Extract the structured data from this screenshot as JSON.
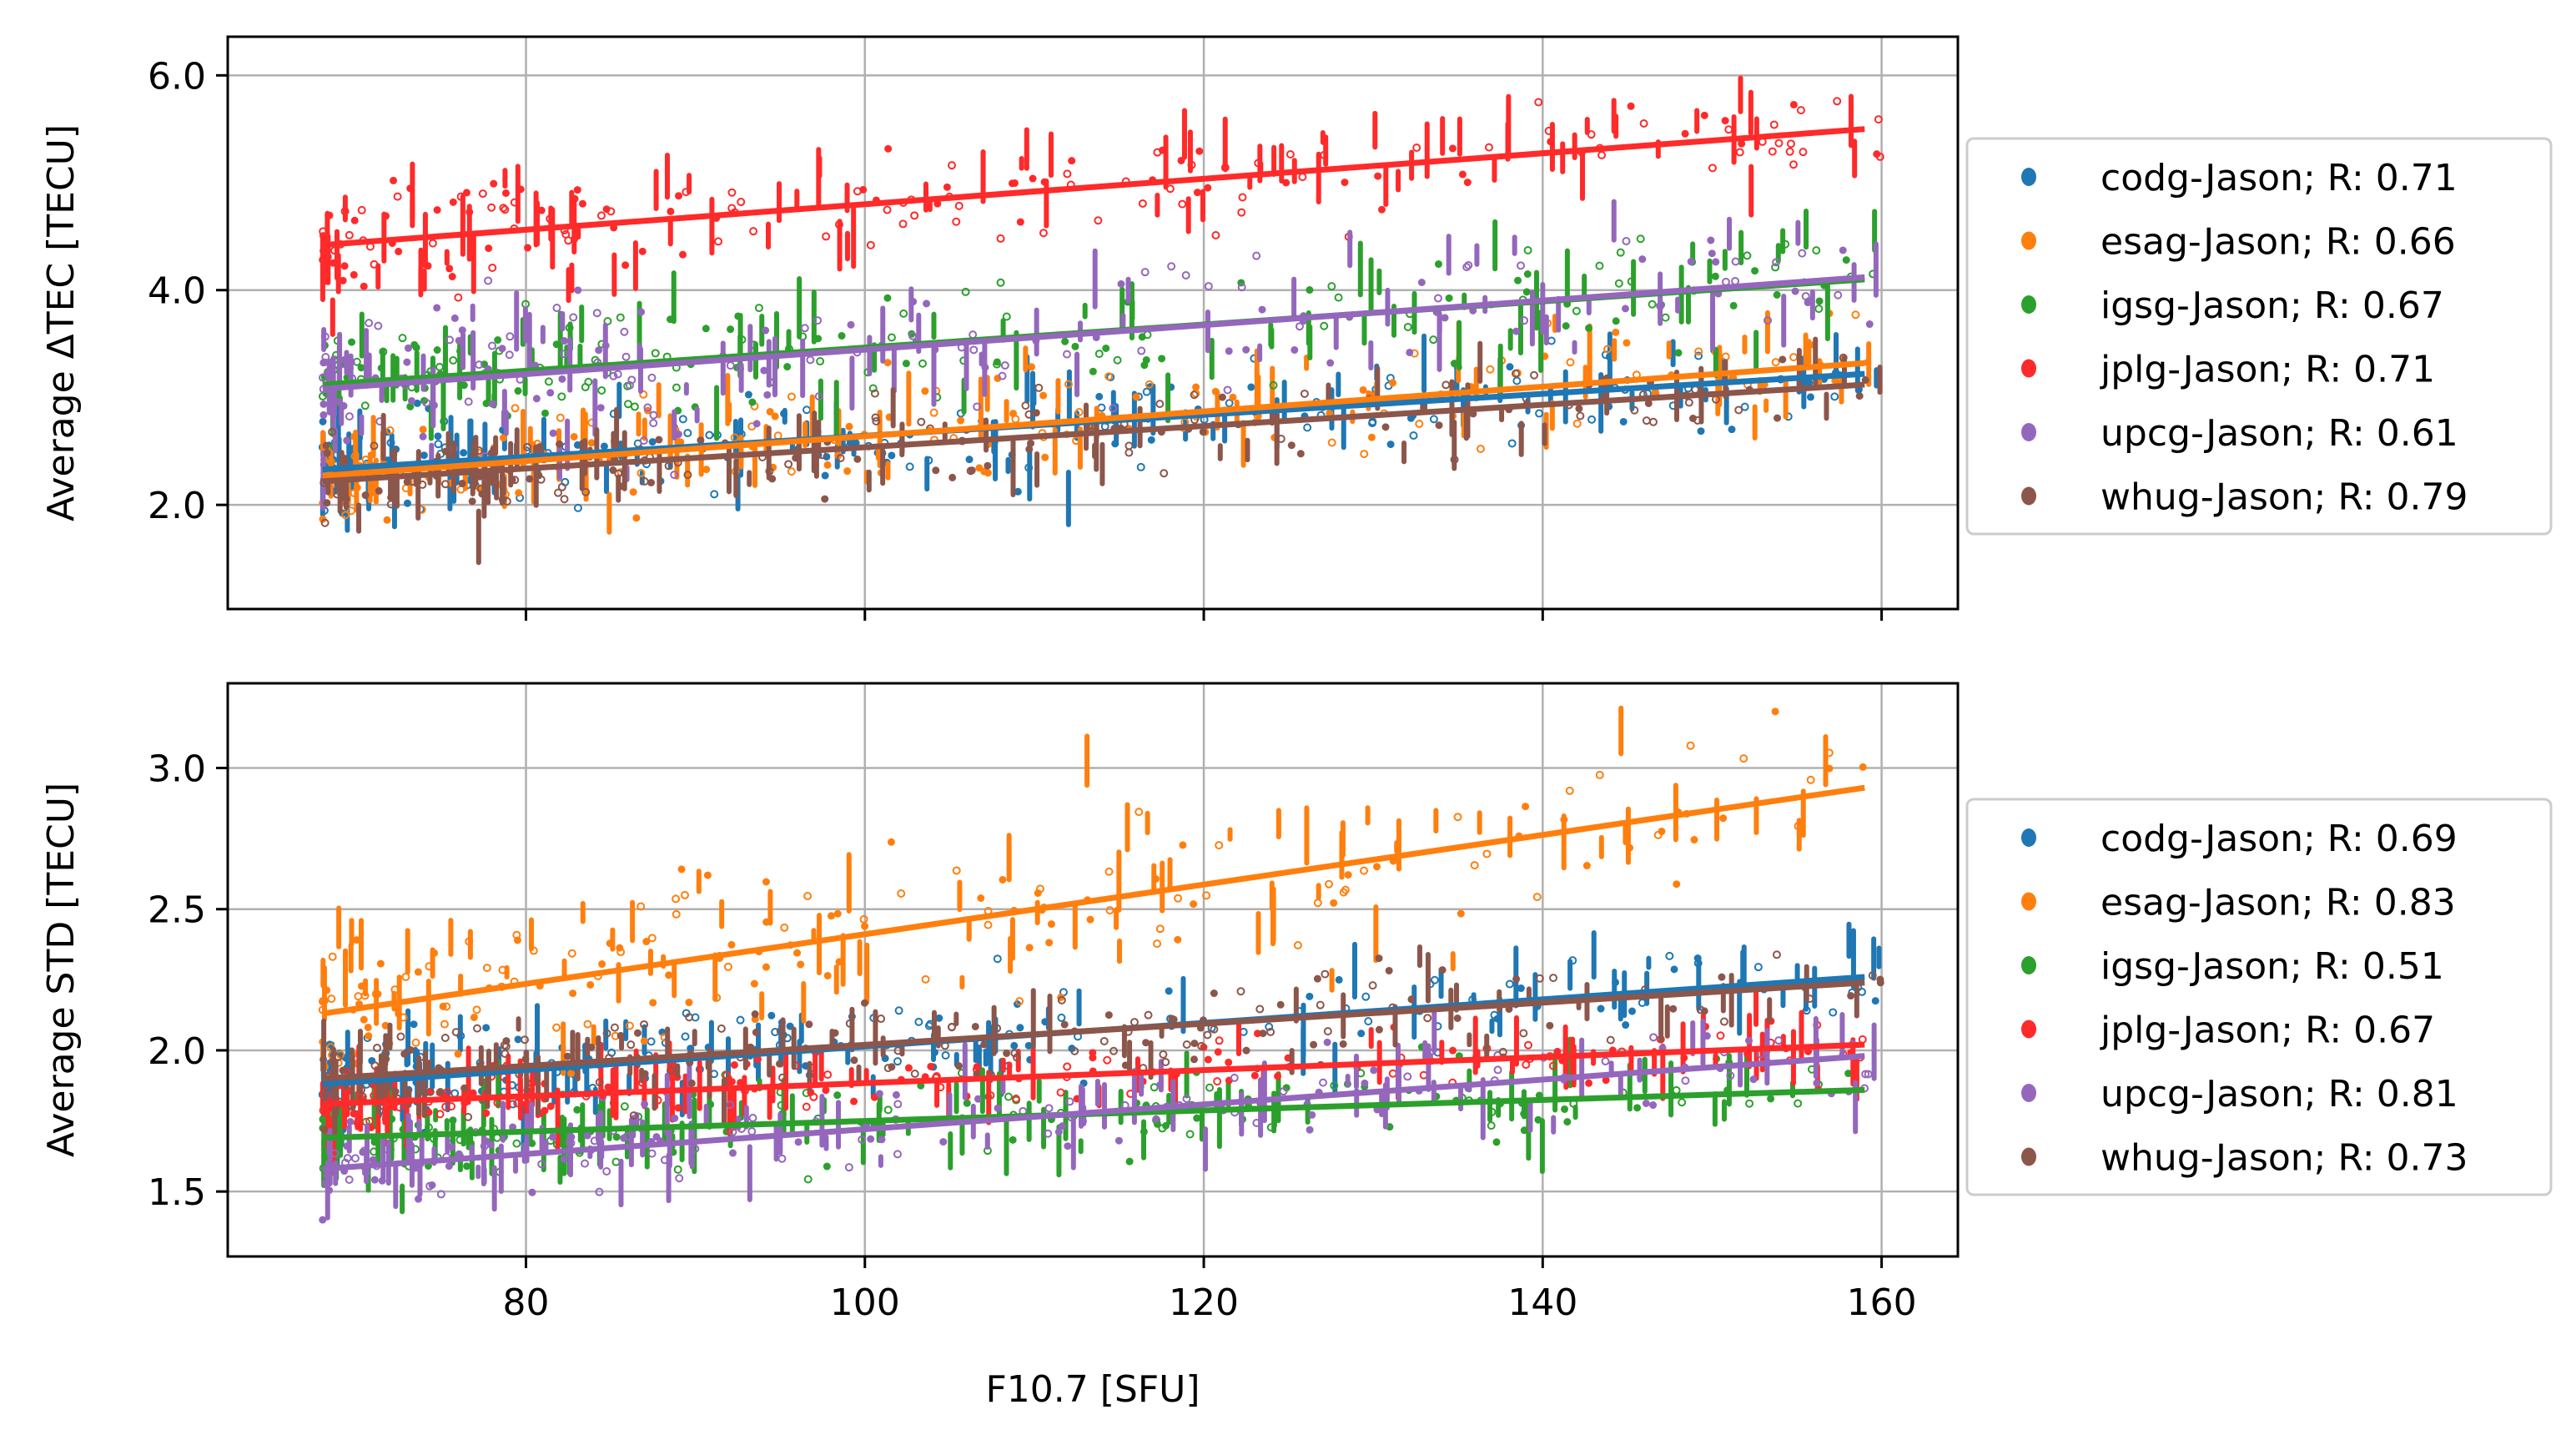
{
  "figure": {
    "xlabel": "F10.7 [SFU]"
  },
  "chart_data": [
    {
      "type": "scatter",
      "title": "",
      "xlabel": "F10.7 [SFU]",
      "ylabel": "Average ΔTEC [TECU]",
      "xlim": [
        62.4,
        164.5
      ],
      "ylim": [
        1.03,
        6.36
      ],
      "xticks": [
        80,
        100,
        120,
        140,
        160
      ],
      "xtick_labels": [
        "",
        "",
        "",
        "",
        ""
      ],
      "yticks": [
        2.0,
        4.0,
        6.0
      ],
      "ytick_labels": [
        "2.0",
        "4.0",
        "6.0"
      ],
      "grid": true,
      "legend_position": "outside right",
      "data_x_range": [
        68,
        160
      ],
      "series": [
        {
          "name": "codg-Jason; R: 0.71",
          "label": "codg-Jason",
          "R": 0.71,
          "color": "#1f77b4",
          "fit": {
            "x": [
              68,
              159
            ],
            "y": [
              2.33,
              3.22
            ]
          },
          "cloud": {
            "spread": 0.35,
            "low": 1.5,
            "high": 3.6
          }
        },
        {
          "name": "esag-Jason; R: 0.66",
          "label": "esag-Jason",
          "R": 0.66,
          "color": "#ff7f0e",
          "fit": {
            "x": [
              68,
              159
            ],
            "y": [
              2.27,
              3.32
            ]
          },
          "cloud": {
            "spread": 0.4,
            "low": 1.3,
            "high": 3.8
          }
        },
        {
          "name": "igsg-Jason; R: 0.67",
          "label": "igsg-Jason",
          "R": 0.67,
          "color": "#2ca02c",
          "fit": {
            "x": [
              68,
              159
            ],
            "y": [
              3.12,
              4.1
            ]
          },
          "cloud": {
            "spread": 0.45,
            "low": 2.2,
            "high": 4.7
          }
        },
        {
          "name": "jplg-Jason; R: 0.71",
          "label": "jplg-Jason",
          "R": 0.71,
          "color": "#ff2a2a",
          "fit": {
            "x": [
              68,
              159
            ],
            "y": [
              4.42,
              5.5
            ]
          },
          "cloud": {
            "spread": 0.4,
            "low": 3.6,
            "high": 6.1
          }
        },
        {
          "name": "upcg-Jason; R: 0.61",
          "label": "upcg-Jason",
          "R": 0.61,
          "color": "#9467bd",
          "fit": {
            "x": [
              68,
              159
            ],
            "y": [
              3.08,
              4.12
            ]
          },
          "cloud": {
            "spread": 0.55,
            "low": 1.8,
            "high": 5.4
          }
        },
        {
          "name": "whug-Jason; R: 0.79",
          "label": "whug-Jason",
          "R": 0.79,
          "color": "#8c564b",
          "fit": {
            "x": [
              68,
              159
            ],
            "y": [
              2.22,
              3.12
            ]
          },
          "cloud": {
            "spread": 0.3,
            "low": 1.5,
            "high": 3.4
          }
        }
      ]
    },
    {
      "type": "scatter",
      "title": "",
      "xlabel": "F10.7 [SFU]",
      "ylabel": "Average STD [TECU]",
      "xlim": [
        62.4,
        164.5
      ],
      "ylim": [
        1.27,
        3.3
      ],
      "xticks": [
        80,
        100,
        120,
        140,
        160
      ],
      "xtick_labels": [
        "80",
        "100",
        "120",
        "140",
        "160"
      ],
      "yticks": [
        1.5,
        2.0,
        2.5,
        3.0
      ],
      "ytick_labels": [
        "1.5",
        "2.0",
        "2.5",
        "3.0"
      ],
      "grid": true,
      "legend_position": "outside right",
      "data_x_range": [
        68,
        160
      ],
      "series": [
        {
          "name": "codg-Jason; R: 0.69",
          "label": "codg-Jason",
          "R": 0.69,
          "color": "#1f77b4",
          "fit": {
            "x": [
              68,
              159
            ],
            "y": [
              1.88,
              2.26
            ]
          },
          "cloud": {
            "spread": 0.13,
            "low": 1.55,
            "high": 2.5
          }
        },
        {
          "name": "esag-Jason; R: 0.83",
          "label": "esag-Jason",
          "R": 0.83,
          "color": "#ff7f0e",
          "fit": {
            "x": [
              68,
              159
            ],
            "y": [
              2.13,
              2.93
            ]
          },
          "cloud": {
            "spread": 0.22,
            "low": 1.9,
            "high": 3.2
          }
        },
        {
          "name": "igsg-Jason; R: 0.51",
          "label": "igsg-Jason",
          "R": 0.51,
          "color": "#2ca02c",
          "fit": {
            "x": [
              68,
              159
            ],
            "y": [
              1.69,
              1.86
            ]
          },
          "cloud": {
            "spread": 0.12,
            "low": 1.4,
            "high": 2.1
          }
        },
        {
          "name": "jplg-Jason; R: 0.67",
          "label": "jplg-Jason",
          "R": 0.67,
          "color": "#ff2a2a",
          "fit": {
            "x": [
              68,
              159
            ],
            "y": [
              1.81,
              2.02
            ]
          },
          "cloud": {
            "spread": 0.09,
            "low": 1.6,
            "high": 2.2
          }
        },
        {
          "name": "upcg-Jason; R: 0.81",
          "label": "upcg-Jason",
          "R": 0.81,
          "color": "#9467bd",
          "fit": {
            "x": [
              68,
              159
            ],
            "y": [
              1.58,
              1.98
            ]
          },
          "cloud": {
            "spread": 0.12,
            "low": 1.38,
            "high": 2.15
          }
        },
        {
          "name": "whug-Jason; R: 0.73",
          "label": "whug-Jason",
          "R": 0.73,
          "color": "#8c564b",
          "fit": {
            "x": [
              68,
              159
            ],
            "y": [
              1.9,
              2.24
            ]
          },
          "cloud": {
            "spread": 0.13,
            "low": 1.6,
            "high": 2.4
          }
        }
      ]
    }
  ],
  "panels": [
    {
      "ylabel": "Average ΔTEC [TECU]",
      "legend": [
        {
          "label": "codg-Jason; R: 0.71",
          "color": "#1f77b4"
        },
        {
          "label": "esag-Jason; R: 0.66",
          "color": "#ff7f0e"
        },
        {
          "label": "igsg-Jason; R: 0.67",
          "color": "#2ca02c"
        },
        {
          "label": "jplg-Jason; R: 0.71",
          "color": "#ff2a2a"
        },
        {
          "label": "upcg-Jason; R: 0.61",
          "color": "#9467bd"
        },
        {
          "label": "whug-Jason; R: 0.79",
          "color": "#8c564b"
        }
      ]
    },
    {
      "ylabel": "Average STD [TECU]",
      "legend": [
        {
          "label": "codg-Jason; R: 0.69",
          "color": "#1f77b4"
        },
        {
          "label": "esag-Jason; R: 0.83",
          "color": "#ff7f0e"
        },
        {
          "label": "igsg-Jason; R: 0.51",
          "color": "#2ca02c"
        },
        {
          "label": "jplg-Jason; R: 0.67",
          "color": "#ff2a2a"
        },
        {
          "label": "upcg-Jason; R: 0.81",
          "color": "#9467bd"
        },
        {
          "label": "whug-Jason; R: 0.73",
          "color": "#8c564b"
        }
      ]
    }
  ]
}
